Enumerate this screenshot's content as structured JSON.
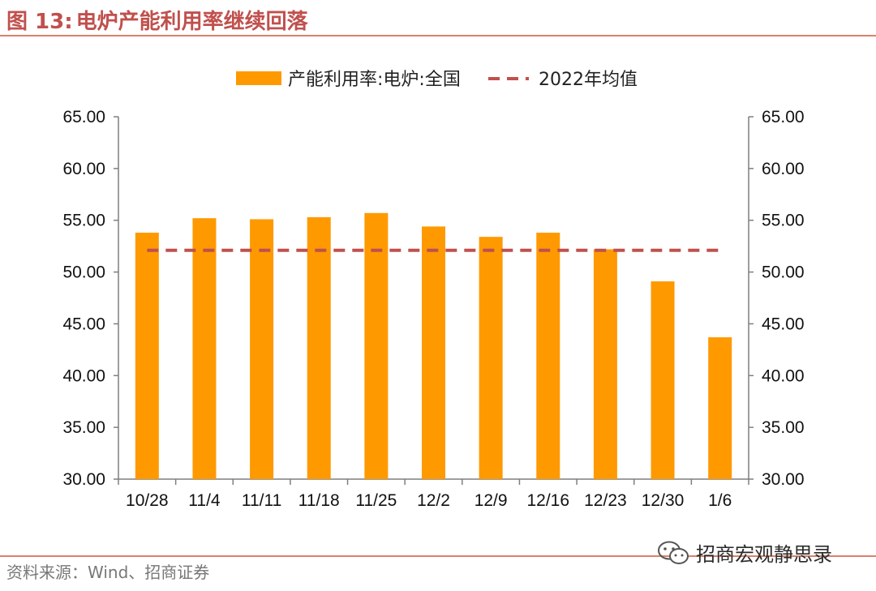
{
  "title": {
    "figure_label": "图 13:",
    "text": "电炉产能利用率继续回落"
  },
  "colors": {
    "bar": "#ff9900",
    "avg_line": "#c0504d",
    "title": "#c0504d",
    "axis": "#7f7f7f"
  },
  "chart_data": {
    "type": "bar",
    "categories": [
      "10/28",
      "11/4",
      "11/11",
      "11/18",
      "11/25",
      "12/2",
      "12/9",
      "12/16",
      "12/23",
      "12/30",
      "1/6"
    ],
    "series": [
      {
        "name": "产能利用率:电炉:全国",
        "kind": "bar",
        "values": [
          53.8,
          55.2,
          55.1,
          55.3,
          55.7,
          54.4,
          53.4,
          53.8,
          52.2,
          49.1,
          43.7
        ]
      },
      {
        "name": "2022年均值",
        "kind": "dashed-line",
        "values": [
          52.1,
          52.1,
          52.1,
          52.1,
          52.1,
          52.1,
          52.1,
          52.1,
          52.1,
          52.1,
          52.1
        ]
      }
    ],
    "ylim": [
      30,
      65
    ],
    "yticks": [
      "65.00",
      "60.00",
      "55.00",
      "50.00",
      "45.00",
      "40.00",
      "35.00",
      "30.00"
    ],
    "y2ticks": [
      "65.00",
      "60.00",
      "55.00",
      "50.00",
      "45.00",
      "40.00",
      "35.00",
      "30.00"
    ],
    "legend": [
      "产能利用率:电炉:全国",
      "2022年均值"
    ],
    "legend_position": "top-center",
    "xlabel": "",
    "ylabel": ""
  },
  "source": "资料来源：Wind、招商证券",
  "watermark": "招商宏观静思录",
  "watermark_icon": "wechat-icon"
}
